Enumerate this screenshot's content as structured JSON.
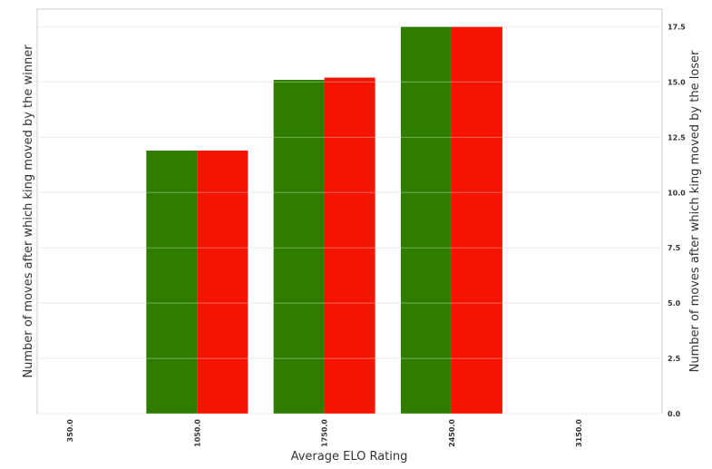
{
  "chart_data": {
    "type": "bar",
    "categories": [
      "350.0",
      "1050.0",
      "1750.0",
      "2450.0",
      "3150.0"
    ],
    "series": [
      {
        "name": "winner",
        "color": "#2e7d00",
        "values": [
          null,
          11.9,
          15.1,
          17.5,
          null
        ]
      },
      {
        "name": "loser",
        "color": "#f51400",
        "values": [
          null,
          11.9,
          15.2,
          17.5,
          null
        ]
      }
    ],
    "xlabel": "Average ELO Rating",
    "ylabel_left": "Number of moves after which king moved  by the winner",
    "ylabel_right": "Number of moves after which king moved  by the loser",
    "ylim": [
      0,
      18.3
    ],
    "yticks_right": [
      "0.0",
      "2.5",
      "5.0",
      "7.5",
      "10.0",
      "12.5",
      "15.0",
      "17.5"
    ],
    "ytick_values": [
      0,
      2.5,
      5,
      7.5,
      10,
      12.5,
      15,
      17.5
    ],
    "grid": true
  }
}
